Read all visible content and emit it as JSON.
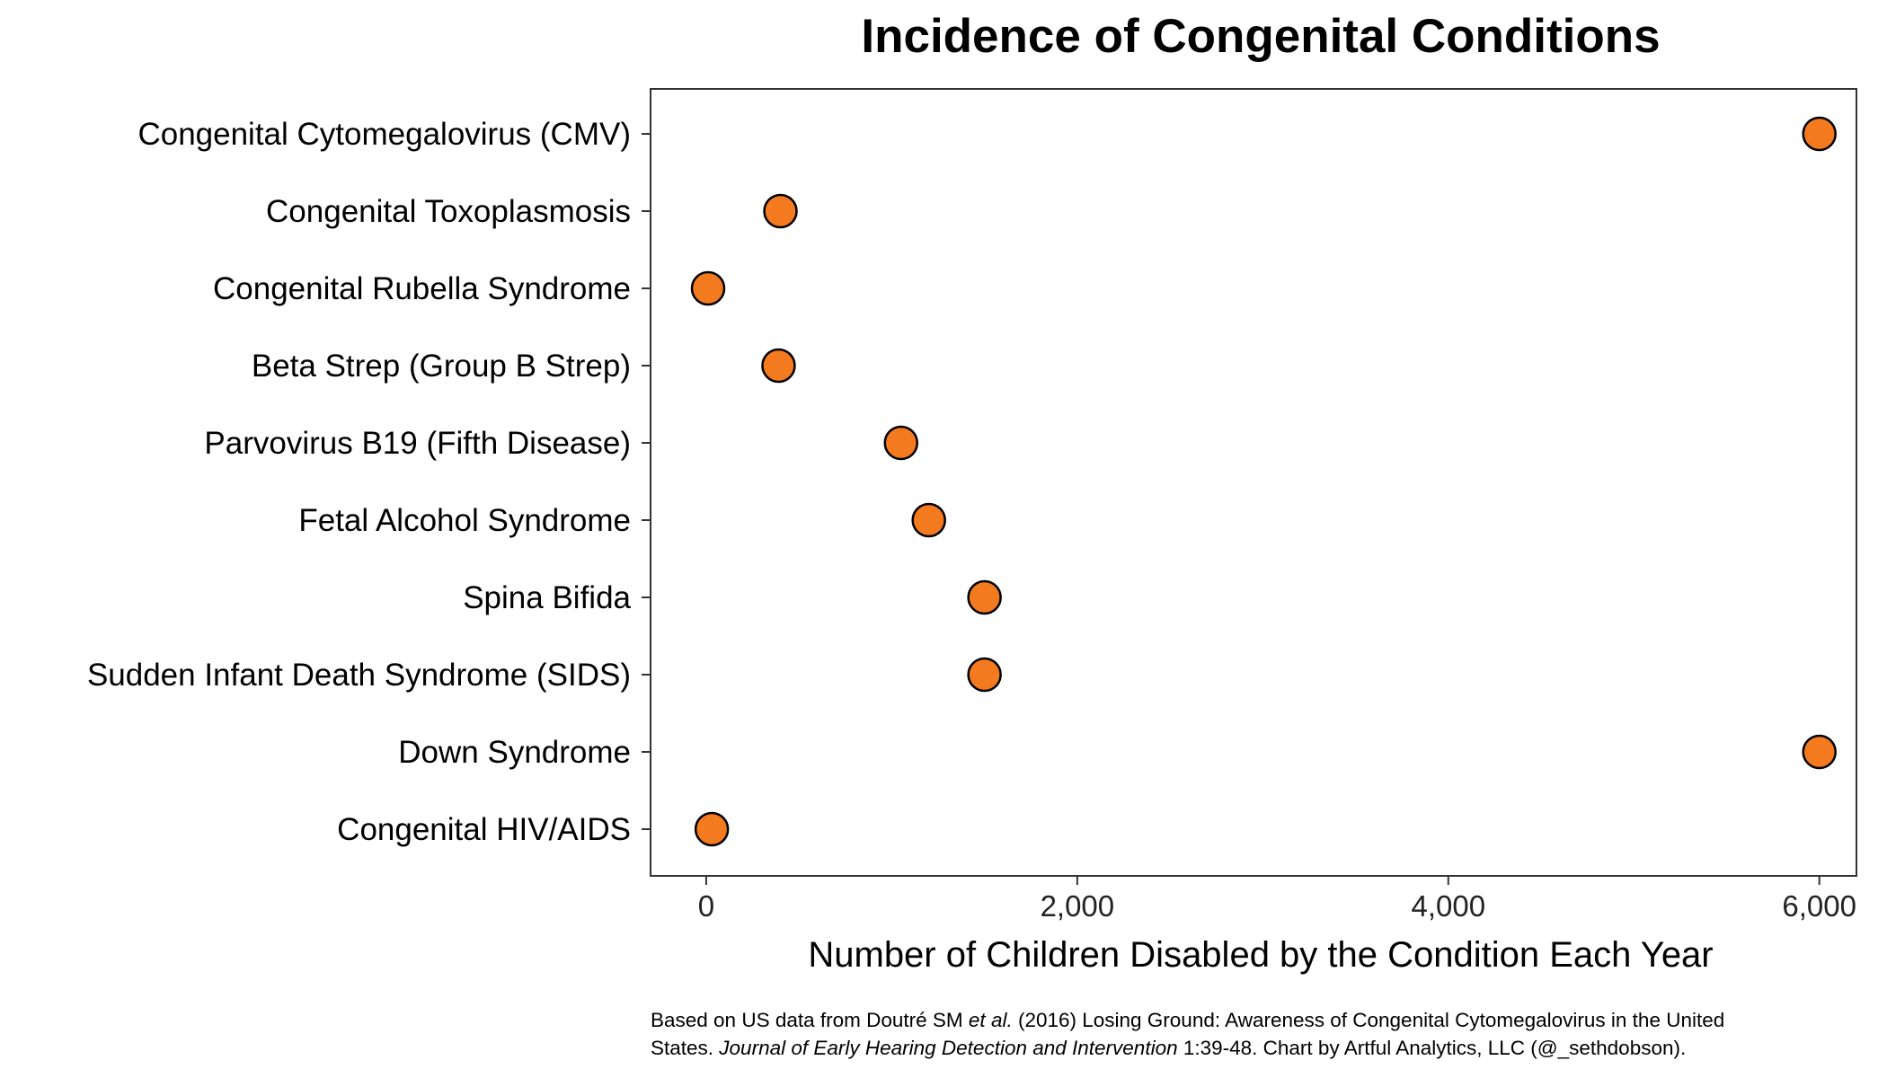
{
  "chart_data": {
    "type": "scatter",
    "title": "Incidence of Congenital Conditions",
    "xlabel": "Number of Children Disabled by the Condition Each Year",
    "ylabel": "",
    "xlim": [
      -300,
      6200
    ],
    "x_ticks": [
      0,
      2000,
      4000,
      6000
    ],
    "x_tick_labels": [
      "0",
      "2,000",
      "4,000",
      "6,000"
    ],
    "grid": false,
    "marker_fill": "#F47A20",
    "marker_edge": "#000000",
    "categories": [
      "Congenital Cytomegalovirus (CMV)",
      "Congenital Toxoplasmosis",
      "Congenital Rubella Syndrome",
      "Beta Strep (Group B Strep)",
      "Parvovirus B19 (Fifth Disease)",
      "Fetal Alcohol Syndrome",
      "Spina Bifida",
      "Sudden Infant Death Syndrome (SIDS)",
      "Down Syndrome",
      "Congenital HIV/AIDS"
    ],
    "values": [
      6000,
      400,
      10,
      390,
      1050,
      1200,
      1500,
      1500,
      6000,
      30
    ]
  },
  "caption": {
    "line1_a": "Based on US data from Doutré SM ",
    "line1_b": "et al.",
    "line1_c": " (2016) Losing Ground: Awareness of Congenital Cytomegalovirus in the United",
    "line2_a": "States. ",
    "line2_b": "Journal of Early Hearing Detection and Intervention",
    "line2_c": " 1:39-48. Chart by Artful Analytics, LLC (@_sethdobson)."
  }
}
